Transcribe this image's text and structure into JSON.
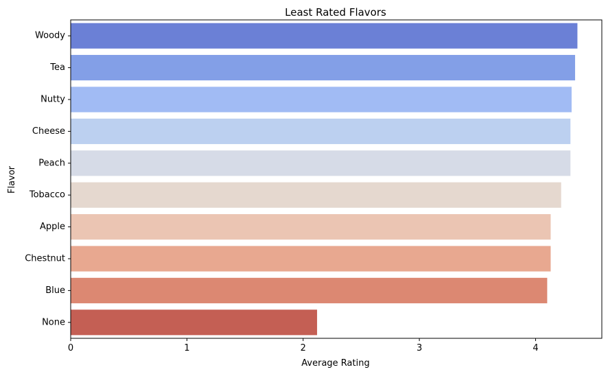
{
  "chart_data": {
    "type": "bar",
    "orientation": "horizontal",
    "title": "Least Rated Flavors",
    "xlabel": "Average Rating",
    "ylabel": "Flavor",
    "categories": [
      "Woody",
      "Tea",
      "Nutty",
      "Cheese",
      "Peach",
      "Tobacco",
      "Apple",
      "Chestnut",
      "Blue",
      "None"
    ],
    "values": [
      4.36,
      4.34,
      4.31,
      4.3,
      4.3,
      4.22,
      4.13,
      4.13,
      4.1,
      2.12
    ],
    "xlim": [
      0,
      4.57
    ],
    "xticks": [
      0,
      1,
      2,
      3,
      4
    ],
    "colors": [
      "#6b80d6",
      "#839fe7",
      "#a1bbf4",
      "#bcd0f0",
      "#d6dbe7",
      "#e5d8cf",
      "#ebc5b3",
      "#e8a890",
      "#dc8872",
      "#c45f54"
    ],
    "grid": false,
    "legend": "none"
  }
}
